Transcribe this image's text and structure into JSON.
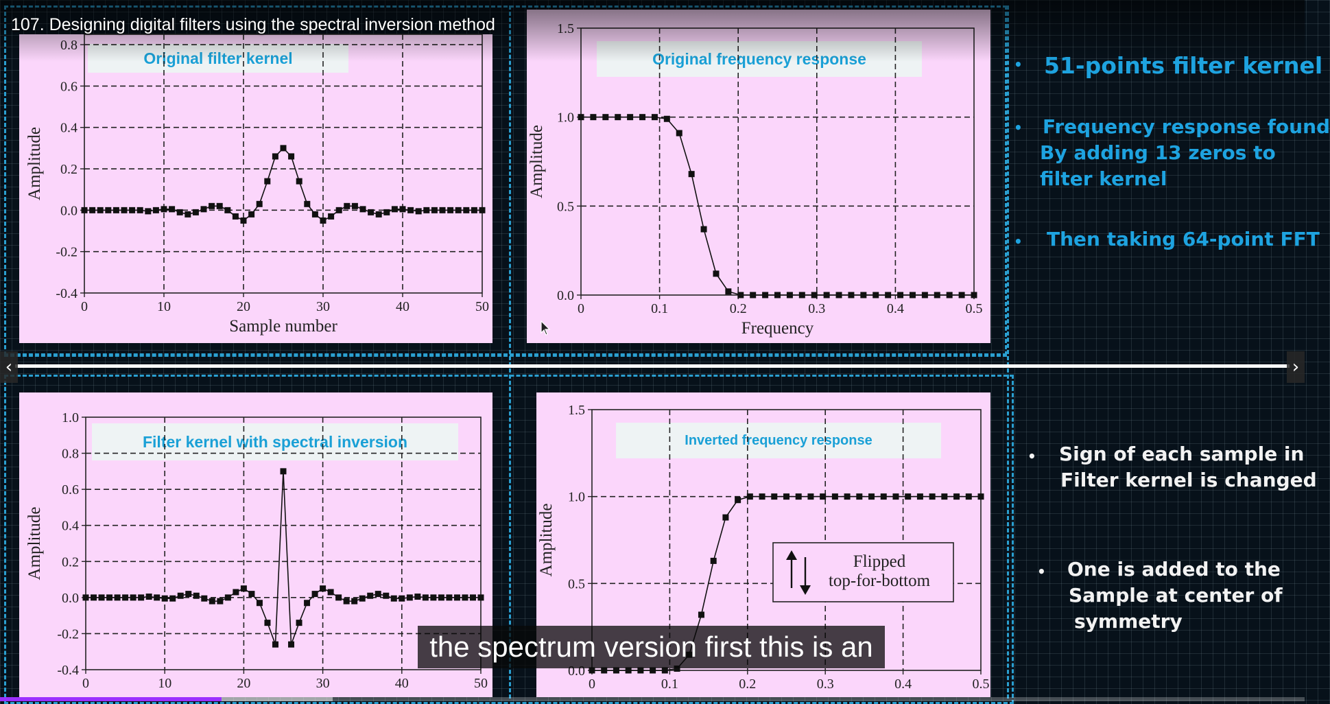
{
  "video": {
    "title": "107. Designing digital filters using the spectral inversion method",
    "caption": "the spectrum version first this is an",
    "progress_played": 0.17,
    "progress_buffered": 0.255
  },
  "nav": {
    "prev_icon": "‹",
    "next_icon": "›"
  },
  "slide": {
    "right_top_bullets": [
      "51-points filter kernel",
      "Frequency response found",
      "By adding 13 zeros to",
      "filter kernel",
      "Then taking 64-point FFT"
    ],
    "right_bottom_bullets": [
      "Sign of each sample in",
      "Filter kernel is changed",
      "One is added to the",
      "Sample at center of",
      "symmetry"
    ],
    "bullet_glyph": "•",
    "colors": {
      "accent_blue": "#1ea3e0",
      "panel_pink": "#fbd6fb",
      "frame_blue": "#2a9fd0"
    }
  },
  "panels": {
    "p1": {
      "banner": "Original filter kernel",
      "xlabel": "Sample number",
      "ylabel": "Amplitude",
      "xticks": [
        "0",
        "10",
        "20",
        "30",
        "40",
        "50"
      ],
      "yticks": [
        "0.8",
        "0.6",
        "0.4",
        "0.2",
        "0.0",
        "-0.2",
        "-0.4"
      ]
    },
    "p2": {
      "banner": "Original frequency response",
      "xlabel": "Frequency",
      "ylabel": "Amplitude",
      "xticks": [
        "0",
        "0.1",
        "0.2",
        "0.3",
        "0.4",
        "0.5"
      ],
      "yticks": [
        "1.5",
        "1.0",
        "0.5",
        "0.0"
      ]
    },
    "p3": {
      "banner": "Filter kernel with spectral inversion",
      "xlabel": "",
      "ylabel": "Amplitude",
      "xticks": [
        "0",
        "10",
        "20",
        "30",
        "40",
        "50"
      ],
      "yticks": [
        "1.0",
        "0.8",
        "0.6",
        "0.4",
        "0.2",
        "0.0",
        "-0.2",
        "-0.4"
      ]
    },
    "p4": {
      "banner": "Inverted frequency response",
      "xlabel": "",
      "ylabel": "Amplitude",
      "xticks": [
        "0",
        "0.1",
        "0.2",
        "0.3",
        "0.4",
        "0.5"
      ],
      "yticks": [
        "1.5",
        "1.0",
        "0.5",
        "0.0"
      ],
      "annotation_line1": "Flipped",
      "annotation_line2": "top-for-bottom"
    }
  },
  "chart_data": [
    {
      "type": "scatter",
      "title": "Original filter kernel",
      "xlabel": "Sample number",
      "ylabel": "Amplitude",
      "xlim": [
        0,
        50
      ],
      "ylim": [
        -0.4,
        0.85
      ],
      "grid": true,
      "x": [
        0,
        1,
        2,
        3,
        4,
        5,
        6,
        7,
        8,
        9,
        10,
        11,
        12,
        13,
        14,
        15,
        16,
        17,
        18,
        19,
        20,
        21,
        22,
        23,
        24,
        25,
        26,
        27,
        28,
        29,
        30,
        31,
        32,
        33,
        34,
        35,
        36,
        37,
        38,
        39,
        40,
        41,
        42,
        43,
        44,
        45,
        46,
        47,
        48,
        49,
        50
      ],
      "y": [
        0,
        0,
        0,
        0,
        0,
        0,
        0,
        0,
        -0.005,
        0,
        0.005,
        0.005,
        -0.01,
        -0.02,
        -0.01,
        0.005,
        0.02,
        0.02,
        0.0,
        -0.03,
        -0.05,
        -0.02,
        0.03,
        0.14,
        0.26,
        0.3,
        0.26,
        0.14,
        0.03,
        -0.02,
        -0.05,
        -0.03,
        0.0,
        0.02,
        0.02,
        0.005,
        -0.01,
        -0.02,
        -0.01,
        0.005,
        0.005,
        0,
        -0.005,
        0,
        0,
        0,
        0,
        0,
        0,
        0,
        0
      ]
    },
    {
      "type": "scatter",
      "title": "Original frequency response",
      "xlabel": "Frequency",
      "ylabel": "Amplitude",
      "xlim": [
        0,
        0.5
      ],
      "ylim": [
        0,
        1.5
      ],
      "grid": true,
      "x": [
        0,
        0.015625,
        0.03125,
        0.046875,
        0.0625,
        0.078125,
        0.09375,
        0.109375,
        0.125,
        0.140625,
        0.15625,
        0.171875,
        0.1875,
        0.203125,
        0.21875,
        0.234375,
        0.25,
        0.265625,
        0.28125,
        0.296875,
        0.3125,
        0.328125,
        0.34375,
        0.359375,
        0.375,
        0.390625,
        0.40625,
        0.421875,
        0.4375,
        0.453125,
        0.46875,
        0.484375,
        0.5
      ],
      "y": [
        1.0,
        1.0,
        1.0,
        1.0,
        1.0,
        1.0,
        1.0,
        0.99,
        0.91,
        0.68,
        0.37,
        0.12,
        0.02,
        0,
        0,
        0,
        0,
        0,
        0,
        0,
        0,
        0,
        0,
        0,
        0,
        0,
        0,
        0,
        0,
        0,
        0,
        0,
        0
      ]
    },
    {
      "type": "scatter",
      "title": "Filter kernel with spectral inversion",
      "xlabel": "",
      "ylabel": "Amplitude",
      "xlim": [
        0,
        50
      ],
      "ylim": [
        -0.4,
        1.0
      ],
      "grid": true,
      "x": [
        0,
        1,
        2,
        3,
        4,
        5,
        6,
        7,
        8,
        9,
        10,
        11,
        12,
        13,
        14,
        15,
        16,
        17,
        18,
        19,
        20,
        21,
        22,
        23,
        24,
        25,
        26,
        27,
        28,
        29,
        30,
        31,
        32,
        33,
        34,
        35,
        36,
        37,
        38,
        39,
        40,
        41,
        42,
        43,
        44,
        45,
        46,
        47,
        48,
        49,
        50
      ],
      "y": [
        0,
        0,
        0,
        0,
        0,
        0,
        0,
        0,
        0.005,
        0,
        -0.005,
        -0.005,
        0.01,
        0.02,
        0.01,
        -0.005,
        -0.02,
        -0.02,
        0.0,
        0.03,
        0.05,
        0.02,
        -0.03,
        -0.14,
        -0.26,
        0.7,
        -0.26,
        -0.14,
        -0.03,
        0.02,
        0.05,
        0.03,
        0.0,
        -0.02,
        -0.02,
        -0.005,
        0.01,
        0.02,
        0.01,
        -0.005,
        -0.005,
        0,
        0.005,
        0,
        0,
        0,
        0,
        0,
        0,
        0,
        0
      ]
    },
    {
      "type": "scatter",
      "title": "Inverted frequency response",
      "xlabel": "",
      "ylabel": "Amplitude",
      "xlim": [
        0,
        0.5
      ],
      "ylim": [
        0,
        1.5
      ],
      "grid": true,
      "x": [
        0,
        0.015625,
        0.03125,
        0.046875,
        0.0625,
        0.078125,
        0.09375,
        0.109375,
        0.125,
        0.140625,
        0.15625,
        0.171875,
        0.1875,
        0.203125,
        0.21875,
        0.234375,
        0.25,
        0.265625,
        0.28125,
        0.296875,
        0.3125,
        0.328125,
        0.34375,
        0.359375,
        0.375,
        0.390625,
        0.40625,
        0.421875,
        0.4375,
        0.453125,
        0.46875,
        0.484375,
        0.5
      ],
      "y": [
        0,
        0,
        0,
        0,
        0,
        0,
        0,
        0.01,
        0.09,
        0.32,
        0.63,
        0.88,
        0.98,
        1.0,
        1.0,
        1.0,
        1.0,
        1.0,
        1.0,
        1.0,
        1.0,
        1.0,
        1.0,
        1.0,
        1.0,
        1.0,
        1.0,
        1.0,
        1.0,
        1.0,
        1.0,
        1.0,
        1.0
      ]
    }
  ]
}
